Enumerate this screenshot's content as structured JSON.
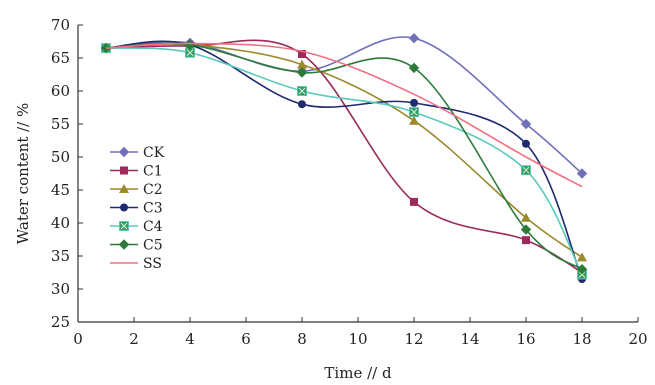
{
  "chart_data": {
    "type": "line",
    "title": "",
    "xlabel": "Time // d",
    "ylabel": "Water content // %",
    "xlim": [
      0,
      20
    ],
    "ylim": [
      25,
      70
    ],
    "xticks": [
      0,
      2,
      4,
      6,
      8,
      10,
      12,
      14,
      16,
      18,
      20
    ],
    "yticks": [
      25,
      30,
      35,
      40,
      45,
      50,
      55,
      60,
      65,
      70
    ],
    "grid": false,
    "legend_position": "left",
    "x": [
      1,
      4,
      8,
      12,
      16,
      18
    ],
    "series": [
      {
        "name": "CK",
        "color": "#7070b8",
        "marker": "diamond",
        "values": [
          66.5,
          67.3,
          63.0,
          68.0,
          55.0,
          47.5
        ]
      },
      {
        "name": "C1",
        "color": "#9c2a5a",
        "marker": "square",
        "values": [
          66.5,
          66.8,
          65.6,
          43.2,
          37.4,
          32.5
        ]
      },
      {
        "name": "C2",
        "color": "#9a8a2a",
        "marker": "triangle",
        "values": [
          66.5,
          67.0,
          64.0,
          55.5,
          40.8,
          34.8
        ]
      },
      {
        "name": "C3",
        "color": "#1e2a6e",
        "marker": "circle",
        "values": [
          66.5,
          67.0,
          58.0,
          58.2,
          52.0,
          31.5
        ]
      },
      {
        "name": "C4",
        "color": "#58c8bc",
        "marker": "square-x",
        "values": [
          66.5,
          65.8,
          60.0,
          56.8,
          48.0,
          32.2
        ]
      },
      {
        "name": "C5",
        "color": "#2e7a3a",
        "marker": "diamond",
        "values": [
          66.5,
          67.0,
          62.8,
          63.5,
          39.0,
          33.0
        ]
      },
      {
        "name": "SS",
        "color": "#f07080",
        "marker": "none",
        "values": [
          66.5,
          67.2,
          66.0,
          59.5,
          50.0,
          45.5
        ]
      }
    ]
  }
}
